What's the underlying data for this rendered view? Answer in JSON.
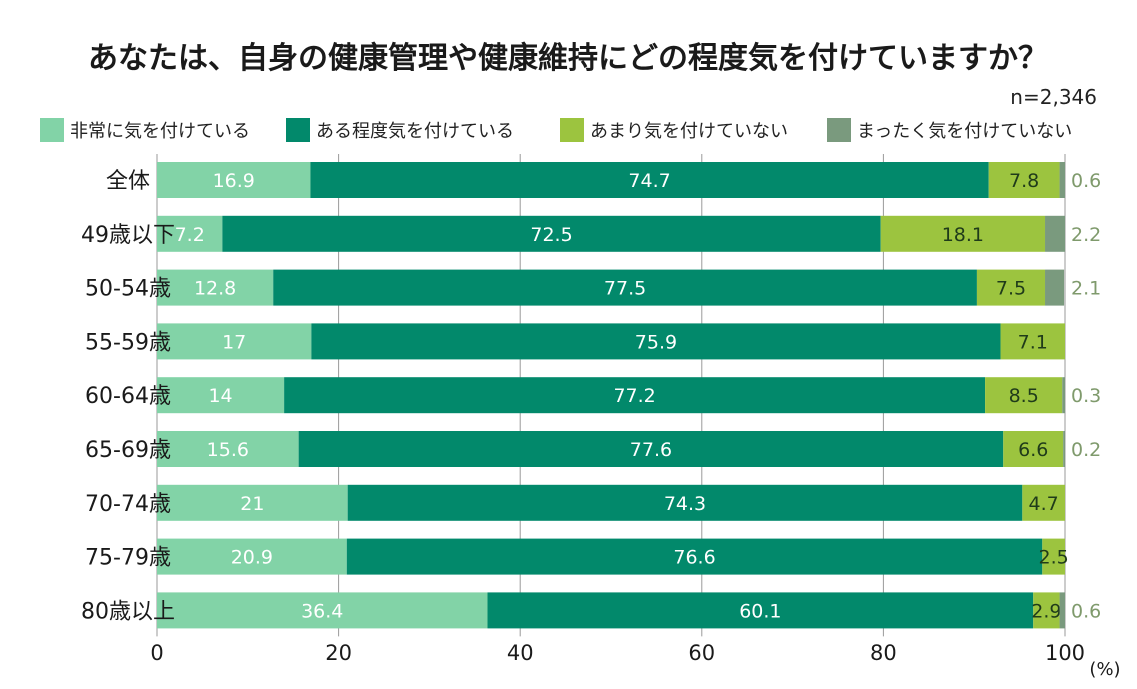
{
  "chart_data": {
    "type": "bar",
    "orientation": "horizontal",
    "stacked": true,
    "title": "あなたは、自身の健康管理や健康維持にどの程度気を付けていますか？",
    "note": "n=2,346",
    "unit": "(%)",
    "categories": [
      "全体",
      "49歳以下",
      "50-54歳",
      "55-59歳",
      "60-64歳",
      "65-69歳",
      "70-74歳",
      "75-79歳",
      "80歳以上"
    ],
    "series": [
      {
        "name": "非常に気を付けている",
        "color": "#82d3a7",
        "values": [
          16.9,
          7.2,
          12.8,
          17,
          14,
          15.6,
          21,
          20.9,
          36.4
        ],
        "labels": [
          "16.9",
          "7.2",
          "12.8",
          "17",
          "14",
          "15.6",
          "21",
          "20.9",
          "36.4"
        ]
      },
      {
        "name": "ある程度気を付けている",
        "color": "#02896b",
        "values": [
          74.7,
          72.5,
          77.5,
          75.9,
          77.2,
          77.6,
          74.3,
          76.6,
          60.1
        ],
        "labels": [
          "74.7",
          "72.5",
          "77.5",
          "75.9",
          "77.2",
          "77.6",
          "74.3",
          "76.6",
          "60.1"
        ]
      },
      {
        "name": "あまり気を付けていない",
        "color": "#9cc43f",
        "values": [
          7.8,
          18.1,
          7.5,
          7.1,
          8.5,
          6.6,
          4.7,
          2.5,
          2.9
        ],
        "labels": [
          "7.8",
          "18.1",
          "7.5",
          "7.1",
          "8.5",
          "6.6",
          "4.7",
          "2.5",
          "2.9"
        ]
      },
      {
        "name": "まったく気を付けていない",
        "color": "#7a9a7e",
        "values": [
          0.6,
          2.2,
          2.1,
          0,
          0.3,
          0.2,
          0,
          0,
          0.6
        ],
        "labels": [
          "0.6",
          "2.2",
          "2.1",
          "",
          "0.3",
          "0.2",
          "",
          "",
          "0.6"
        ]
      }
    ],
    "xlim": [
      0,
      100
    ],
    "xticks": [
      "0",
      "20",
      "40",
      "60",
      "80",
      "100"
    ],
    "grid": true,
    "legend_position": "top"
  }
}
